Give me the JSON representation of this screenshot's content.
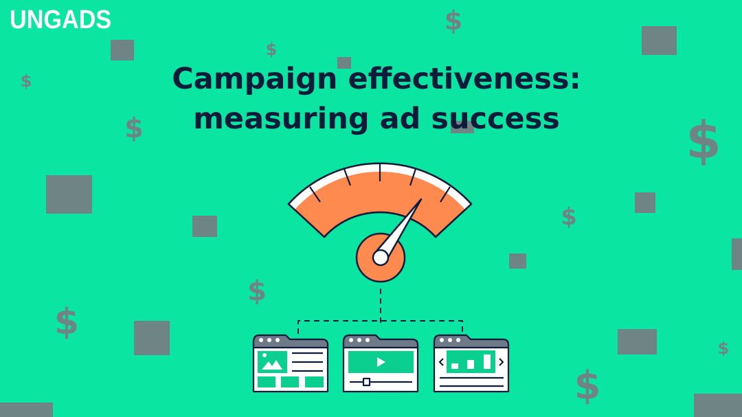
{
  "brand": {
    "logo_text": "UNGADS"
  },
  "title": {
    "line1": "Campaign effectiveness:",
    "line2": "measuring ad success"
  },
  "decoration": {
    "symbol": "$"
  },
  "illustration": {
    "gauge_icon": "speedometer-icon",
    "ad_formats": [
      "image-ad-icon",
      "video-ad-icon",
      "carousel-ad-icon"
    ]
  },
  "colors": {
    "background": "#0ae6a2",
    "gauge": "#ff8a50",
    "ink": "#0f1b3a",
    "decor": "#6f8585"
  }
}
